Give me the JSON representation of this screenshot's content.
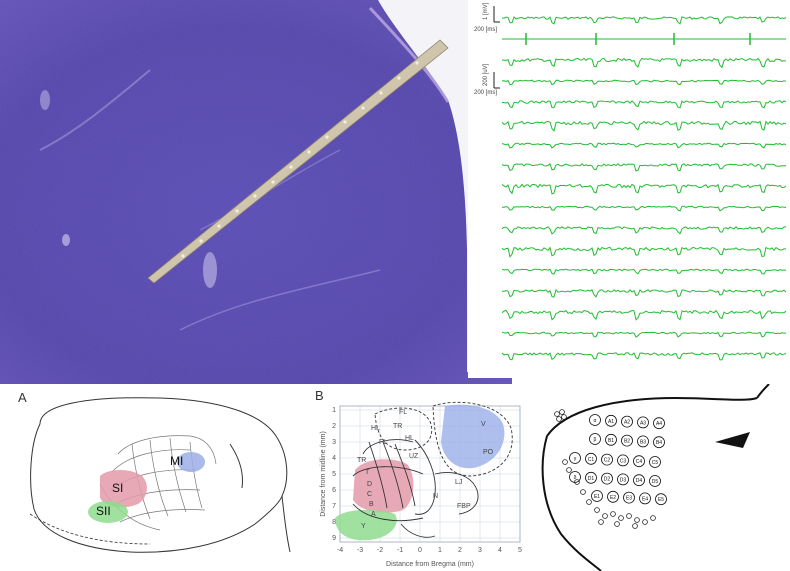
{
  "panels": {
    "a": "A",
    "b": "B"
  },
  "traces": {
    "scale_top_v": "1 [mV]",
    "scale_top_t": "200 [ms]",
    "scale_mid_v": "200 [uV]",
    "scale_mid_t": "200 [ms]",
    "channel_count": 16,
    "color": "#22bb33"
  },
  "brain": {
    "regions": [
      "MI",
      "SI",
      "SII"
    ],
    "colors": {
      "MI": "#9aaee8",
      "SI": "#e49aaa",
      "SII": "#8fdc8f"
    }
  },
  "map": {
    "xlabel": "Distance from Bregma (mm)",
    "ylabel": "Distance from midline (mm)",
    "xticks": [
      "-4",
      "-3",
      "-2",
      "-1",
      "0",
      "1",
      "2",
      "3",
      "4",
      "5"
    ],
    "yticks": [
      "1",
      "2",
      "3",
      "4",
      "5",
      "6",
      "7",
      "8",
      "9"
    ],
    "labels": [
      "FL",
      "HL",
      "TR",
      "FL",
      "UZ",
      "TR",
      "HL",
      "V",
      "PO",
      "LJ",
      "FBP",
      "N",
      "T",
      "D",
      "C",
      "B",
      "A",
      "Y"
    ]
  },
  "whisker_rows": [
    [
      "α",
      "A1",
      "A2",
      "A3",
      "A4"
    ],
    [
      "β",
      "B1",
      "B2",
      "B3",
      "B4"
    ],
    [
      "γ",
      "C1",
      "C2",
      "C3",
      "C4",
      "C5"
    ],
    [
      "δ",
      "D1",
      "D2",
      "D3",
      "D4",
      "D5"
    ],
    [
      "E1",
      "E2",
      "E3",
      "E4",
      "E5"
    ]
  ],
  "whisker_straddlers": [
    "α",
    "β",
    "γ",
    "δ"
  ]
}
